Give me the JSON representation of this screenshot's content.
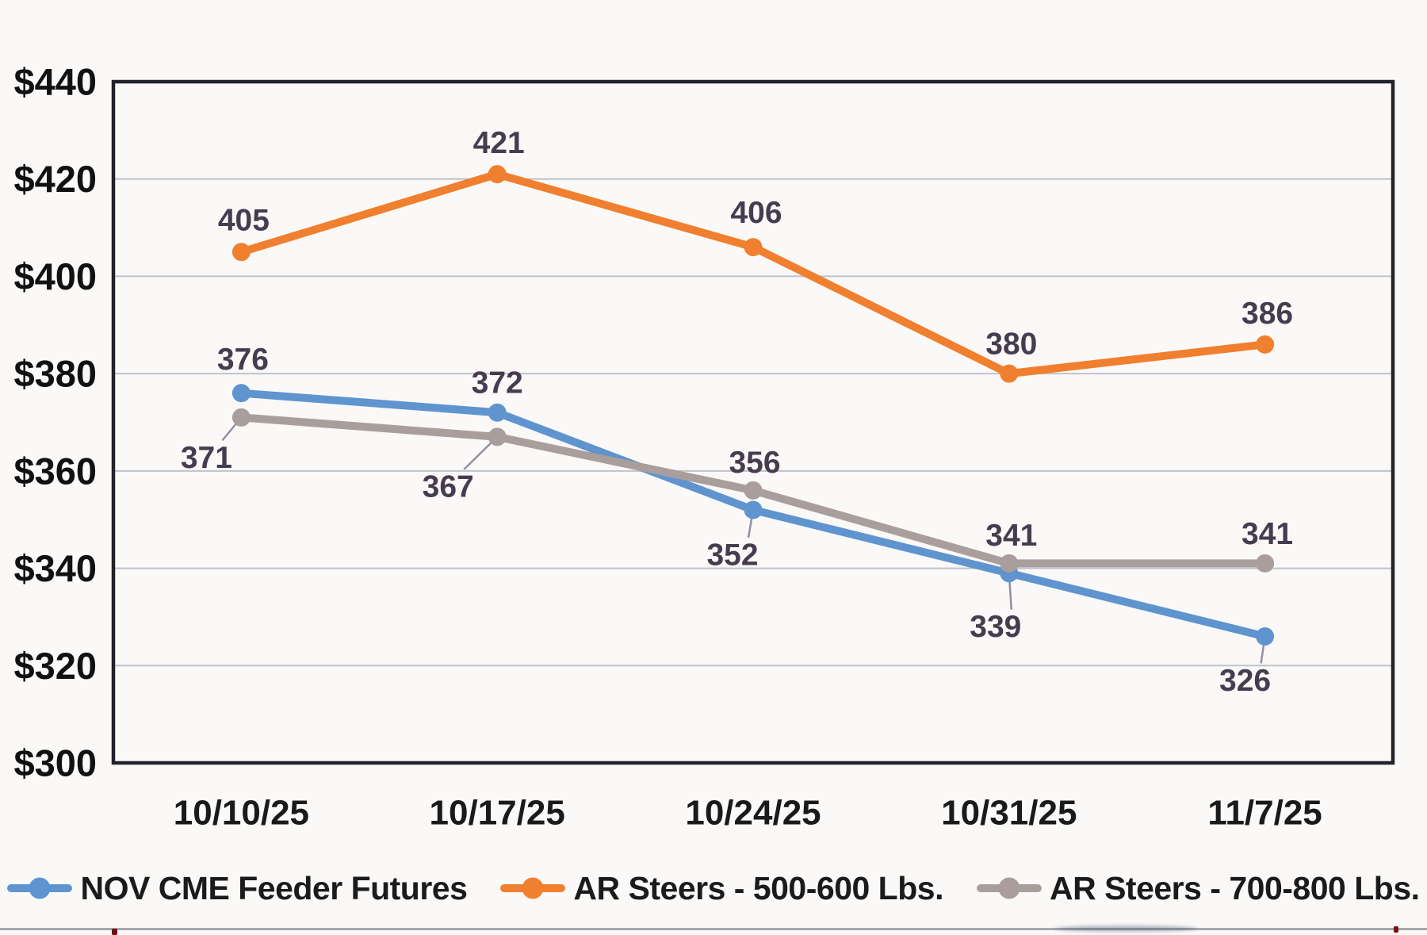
{
  "chart_data": {
    "type": "line",
    "title": "",
    "categories": [
      "10/10/25",
      "10/17/25",
      "10/24/25",
      "10/31/25",
      "11/7/25"
    ],
    "series": [
      {
        "name": "NOV CME Feeder Futures",
        "color": "#5F94CE",
        "values": [
          376,
          372,
          352,
          339,
          326
        ],
        "label_placement": [
          {
            "dx": 2,
            "dy": -42
          },
          {
            "dx": 0,
            "dy": -37
          },
          {
            "dx": -26,
            "dy": 57,
            "leader": true
          },
          {
            "dx": -17,
            "dy": 68,
            "leader": true
          },
          {
            "dx": -25,
            "dy": 56,
            "leader": true
          }
        ]
      },
      {
        "name": "AR Steers -  500-600 Lbs.",
        "color": "#F07F2F",
        "values": [
          405,
          421,
          406,
          380,
          386
        ],
        "label_placement": [
          {
            "dx": 3,
            "dy": -40
          },
          {
            "dx": 2,
            "dy": -39
          },
          {
            "dx": 4,
            "dy": -43
          },
          {
            "dx": 3,
            "dy": -37
          },
          {
            "dx": 3,
            "dy": -39
          }
        ]
      },
      {
        "name": "AR Steers - 700-800 Lbs.",
        "color": "#AA9E9C",
        "values": [
          371,
          367,
          356,
          341,
          341
        ],
        "label_placement": [
          {
            "dx": -44,
            "dy": 51,
            "leader": true
          },
          {
            "dx": -62,
            "dy": 63,
            "leader": true
          },
          {
            "dx": 2,
            "dy": -35
          },
          {
            "dx": 3,
            "dy": -35
          },
          {
            "dx": 3,
            "dy": -37
          }
        ]
      }
    ],
    "y_axis": {
      "min": 300,
      "max": 440,
      "step": 20,
      "prefix": "$",
      "labels": [
        "$440",
        "$420",
        "$400",
        "$380",
        "$360",
        "$340",
        "$320",
        "$300"
      ]
    },
    "xlabel": "",
    "ylabel": "",
    "ylim": [
      300,
      440
    ],
    "grid": true,
    "legend_position": "bottom",
    "style": {
      "background": "#faf9f7",
      "grid_color": "#bfc2cb",
      "border_color": "#22232a",
      "axis_label_color": "#111111",
      "x_label_color": "#1a1a1a",
      "data_label_color": "#473C4F",
      "leader_color": "#998da0"
    }
  }
}
